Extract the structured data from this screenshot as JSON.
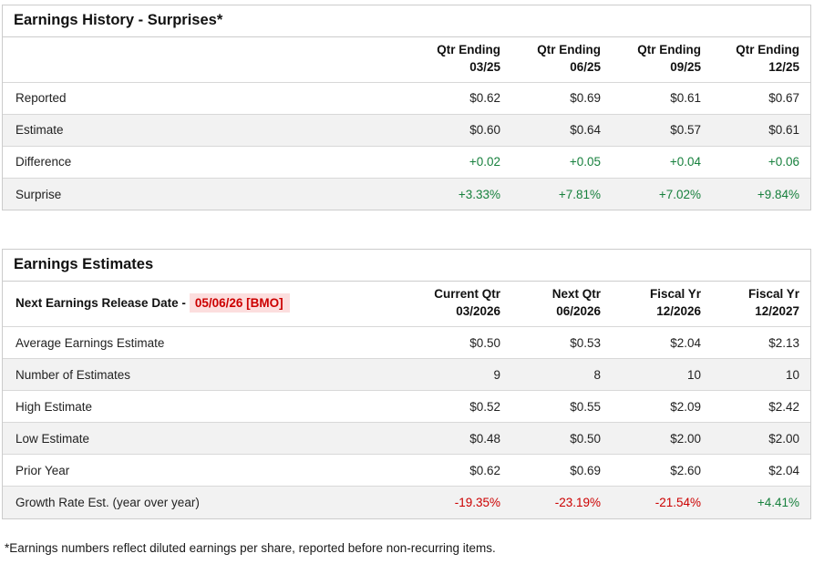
{
  "colors": {
    "positive_green": "#17803d",
    "negative_red": "#cc0000",
    "release_highlight_bg": "#fcdede",
    "row_alt_bg": "#f2f2f2",
    "table_border": "#cccccc"
  },
  "earnings_history": {
    "title": "Earnings History - Surprises*",
    "columns": [
      {
        "line1": "Qtr Ending",
        "line2": "03/25"
      },
      {
        "line1": "Qtr Ending",
        "line2": "06/25"
      },
      {
        "line1": "Qtr Ending",
        "line2": "09/25"
      },
      {
        "line1": "Qtr Ending",
        "line2": "12/25"
      }
    ],
    "rows": [
      {
        "label": "Reported",
        "values": [
          "$0.62",
          "$0.69",
          "$0.61",
          "$0.67"
        ]
      },
      {
        "label": "Estimate",
        "values": [
          "$0.60",
          "$0.64",
          "$0.57",
          "$0.61"
        ]
      },
      {
        "label": "Difference",
        "values": [
          "+0.02",
          "+0.05",
          "+0.04",
          "+0.06"
        ]
      },
      {
        "label": "Surprise",
        "values": [
          "+3.33%",
          "+7.81%",
          "+7.02%",
          "+9.84%"
        ]
      }
    ]
  },
  "earnings_estimates": {
    "title": "Earnings Estimates",
    "release_label": "Next Earnings Release Date -",
    "release_date": "05/06/26 [BMO]",
    "columns": [
      {
        "line1": "Current Qtr",
        "line2": "03/2026"
      },
      {
        "line1": "Next Qtr",
        "line2": "06/2026"
      },
      {
        "line1": "Fiscal Yr",
        "line2": "12/2026"
      },
      {
        "line1": "Fiscal Yr",
        "line2": "12/2027"
      }
    ],
    "rows": [
      {
        "label": "Average Earnings Estimate",
        "values": [
          "$0.50",
          "$0.53",
          "$2.04",
          "$2.13"
        ]
      },
      {
        "label": "Number of Estimates",
        "values": [
          "9",
          "8",
          "10",
          "10"
        ]
      },
      {
        "label": "High Estimate",
        "values": [
          "$0.52",
          "$0.55",
          "$2.09",
          "$2.42"
        ]
      },
      {
        "label": "Low Estimate",
        "values": [
          "$0.48",
          "$0.50",
          "$2.00",
          "$2.00"
        ]
      },
      {
        "label": "Prior Year",
        "values": [
          "$0.62",
          "$0.69",
          "$2.60",
          "$2.04"
        ]
      },
      {
        "label": "Growth Rate Est. (year over year)",
        "values": [
          "-19.35%",
          "-23.19%",
          "-21.54%",
          "+4.41%"
        ]
      }
    ]
  },
  "footnote": "*Earnings numbers reflect diluted earnings per share, reported before non-recurring items."
}
